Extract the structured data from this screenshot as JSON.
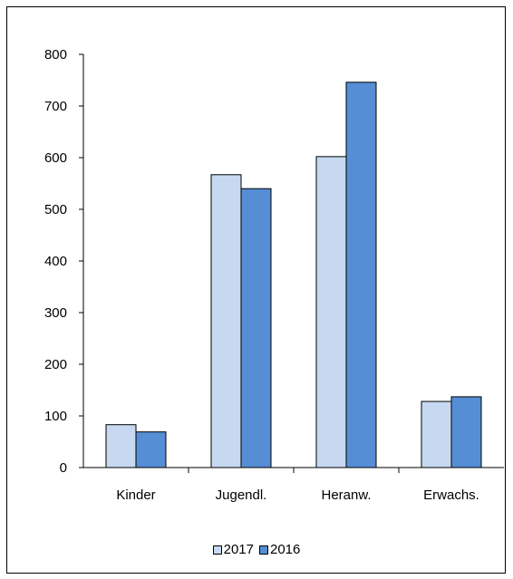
{
  "chart_data": {
    "type": "bar",
    "title": "",
    "xlabel": "",
    "ylabel": "",
    "categories": [
      "Kinder",
      "Jugendl.",
      "Heranw.",
      "Erwachs."
    ],
    "series": [
      {
        "name": "2017",
        "color": "#c6d9f1",
        "values": [
          83,
          567,
          602,
          128
        ]
      },
      {
        "name": "2016",
        "color": "#558ed5",
        "values": [
          69,
          540,
          746,
          137
        ]
      }
    ],
    "ylim": [
      0,
      800
    ],
    "yticks": [
      "0",
      "100",
      "200",
      "300",
      "400",
      "500",
      "600",
      "700",
      "800"
    ],
    "grid": false,
    "legend_position": "bottom"
  }
}
